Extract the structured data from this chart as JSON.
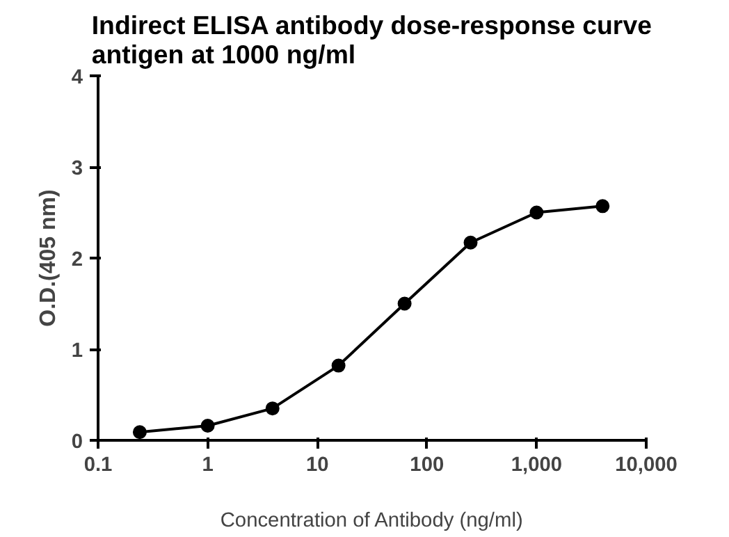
{
  "chart_data": {
    "type": "line",
    "title": "Indirect ELISA antibody dose-response curve\nantigen at 1000 ng/ml",
    "xlabel": "Concentration of Antibody (ng/ml)",
    "ylabel": "O.D.(405 nm)",
    "x": [
      0.24,
      1,
      3.9,
      15.6,
      62.5,
      250,
      1000,
      4000
    ],
    "series": [
      {
        "color": "#000000",
        "values": [
          0.09,
          0.16,
          0.35,
          0.82,
          1.5,
          2.17,
          2.5,
          2.57
        ]
      }
    ],
    "log": "x",
    "xlim": [
      0.1,
      10000
    ],
    "xticks": [
      0.1,
      1,
      10,
      100,
      {
        "value": 1000,
        "label": "1,000"
      },
      {
        "value": 10000,
        "label": "10,000"
      }
    ],
    "ylim": [
      0,
      4
    ],
    "yticks": [
      0,
      1,
      2,
      3,
      4
    ],
    "grid": false,
    "marker": "circle",
    "line_style": "solid"
  }
}
